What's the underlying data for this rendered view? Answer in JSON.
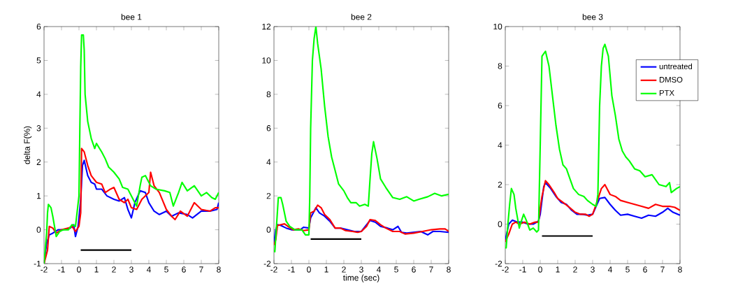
{
  "chart_data": [
    {
      "type": "line",
      "title": "bee 1",
      "ylabel": "delta F(%)",
      "xlim": [
        -2,
        8
      ],
      "ylim": [
        -1,
        6
      ],
      "xticks": [
        -2,
        -1,
        0,
        1,
        2,
        3,
        4,
        5,
        6,
        7,
        8
      ],
      "yticks": [
        -1,
        0,
        1,
        2,
        3,
        4,
        5,
        6
      ],
      "legend": false,
      "series": [
        {
          "color": "#0000ff",
          "x": [
            -2,
            -1.85,
            -1.7,
            -1.5,
            -1.2,
            -0.9,
            -0.5,
            -0.3,
            -0.2,
            -0.05,
            0.1,
            0.2,
            0.3,
            0.5,
            0.7,
            0.9,
            1.0,
            1.3,
            1.6,
            2.0,
            2.3,
            2.6,
            2.8,
            3.0,
            3.2,
            3.5,
            3.8,
            4.0,
            4.3,
            4.6,
            5.0,
            5.3,
            5.7,
            6.2,
            6.5,
            7.0,
            7.5,
            7.9,
            8.0
          ],
          "values": [
            -1.0,
            -0.4,
            -0.15,
            -0.1,
            0.0,
            0.0,
            0.05,
            0.15,
            -0.2,
            0.1,
            0.9,
            1.9,
            2.05,
            1.6,
            1.4,
            1.35,
            1.2,
            1.2,
            1.0,
            0.9,
            0.85,
            0.95,
            0.6,
            0.35,
            0.8,
            1.15,
            1.1,
            0.8,
            0.55,
            0.45,
            0.55,
            0.4,
            0.5,
            0.45,
            0.35,
            0.55,
            0.55,
            0.6,
            0.8
          ]
        },
        {
          "color": "#ff0000",
          "x": [
            -2,
            -1.8,
            -1.7,
            -1.5,
            -1.3,
            -1.0,
            -0.6,
            -0.4,
            -0.2,
            0.0,
            0.1,
            0.15,
            0.3,
            0.5,
            0.7,
            1.0,
            1.3,
            1.5,
            1.8,
            2.0,
            2.3,
            2.6,
            2.8,
            3.0,
            3.3,
            3.6,
            3.9,
            4.0,
            4.1,
            4.3,
            4.6,
            5.0,
            5.3,
            5.5,
            5.8,
            6.2,
            6.6,
            7.0,
            7.5,
            7.8,
            8.0
          ],
          "values": [
            -1.0,
            -0.6,
            0.1,
            0.05,
            -0.1,
            0.0,
            0.05,
            0.1,
            -0.05,
            0.1,
            0.5,
            2.4,
            2.3,
            1.9,
            1.6,
            1.4,
            1.35,
            1.1,
            1.2,
            1.25,
            0.9,
            0.8,
            0.9,
            0.65,
            0.6,
            0.9,
            1.05,
            1.1,
            1.7,
            1.3,
            1.1,
            0.6,
            0.4,
            0.3,
            0.55,
            0.4,
            0.8,
            0.6,
            0.55,
            0.65,
            0.65
          ]
        },
        {
          "color": "#00ff00",
          "x": [
            -2.0,
            -1.85,
            -1.8,
            -1.75,
            -1.6,
            -1.5,
            -1.4,
            -1.3,
            -1.1,
            -0.9,
            -0.6,
            -0.4,
            -0.2,
            0.0,
            0.05,
            0.1,
            0.15,
            0.25,
            0.3,
            0.35,
            0.5,
            0.7,
            0.9,
            1.0,
            1.3,
            1.5,
            1.7,
            2.0,
            2.3,
            2.5,
            2.8,
            3.0,
            3.3,
            3.5,
            3.6,
            3.8,
            4.1,
            4.4,
            4.9,
            5.2,
            5.4,
            5.7,
            5.9,
            6.2,
            6.6,
            7.0,
            7.3,
            7.6,
            7.8,
            8.0
          ],
          "values": [
            -1.0,
            -0.1,
            0.5,
            0.75,
            0.65,
            0.4,
            0.1,
            -0.2,
            -0.05,
            0.0,
            0.0,
            0.15,
            0.1,
            1.0,
            3.0,
            4.8,
            5.75,
            5.75,
            5.3,
            4.0,
            3.2,
            2.7,
            2.4,
            2.55,
            2.3,
            2.1,
            1.85,
            1.7,
            1.5,
            1.25,
            1.2,
            1.0,
            0.7,
            1.3,
            1.55,
            1.6,
            1.3,
            1.2,
            1.15,
            1.1,
            0.7,
            1.1,
            1.4,
            1.15,
            1.3,
            1.0,
            1.1,
            0.95,
            0.9,
            1.1
          ]
        },
        {
          "color": "#000000",
          "x": [
            0.1,
            3
          ],
          "values": [
            -0.6,
            -0.6
          ]
        }
      ]
    },
    {
      "type": "line",
      "title": "bee 2",
      "xlabel": "time (sec)",
      "xlim": [
        -2,
        8
      ],
      "ylim": [
        -2,
        12
      ],
      "xticks": [
        -2,
        -1,
        0,
        1,
        2,
        3,
        4,
        5,
        6,
        7,
        8
      ],
      "yticks": [
        -2,
        0,
        2,
        4,
        6,
        8,
        10,
        12
      ],
      "legend": false,
      "series": [
        {
          "color": "#0000ff",
          "x": [
            -2,
            -1.9,
            -1.8,
            -1.6,
            -1.3,
            -1.0,
            -0.5,
            -0.3,
            0.0,
            0.1,
            0.3,
            0.4,
            0.6,
            0.9,
            1.2,
            1.5,
            1.8,
            2.2,
            2.6,
            3.0,
            3.3,
            3.5,
            3.8,
            4.1,
            4.5,
            4.8,
            5.1,
            5.3,
            5.6,
            6.0,
            6.4,
            6.8,
            7.1,
            7.5,
            8.0
          ],
          "values": [
            -0.8,
            0.0,
            0.3,
            0.25,
            0.1,
            0.0,
            0.0,
            0.15,
            0.1,
            0.7,
            1.1,
            1.3,
            1.0,
            0.8,
            0.5,
            0.1,
            0.1,
            0.0,
            -0.1,
            -0.1,
            0.3,
            0.55,
            0.45,
            0.2,
            0.1,
            0.0,
            0.2,
            -0.15,
            -0.2,
            -0.15,
            -0.1,
            -0.3,
            -0.1,
            -0.1,
            -0.15
          ]
        },
        {
          "color": "#ff0000",
          "x": [
            -2,
            -1.9,
            -1.8,
            -1.6,
            -1.4,
            -1.2,
            -0.9,
            -0.6,
            -0.3,
            0.0,
            0.1,
            0.3,
            0.5,
            0.7,
            0.9,
            1.2,
            1.5,
            1.8,
            2.1,
            2.5,
            2.8,
            3.0,
            3.3,
            3.5,
            3.8,
            4.1,
            4.4,
            4.8,
            5.2,
            5.5,
            6.0,
            6.5,
            7.0,
            7.5,
            7.8,
            8.0
          ],
          "values": [
            -0.9,
            -0.6,
            0.25,
            0.3,
            0.35,
            0.2,
            0.0,
            0.05,
            -0.05,
            0.0,
            1.0,
            1.1,
            1.45,
            1.3,
            0.9,
            0.6,
            0.1,
            0.1,
            -0.05,
            -0.1,
            -0.15,
            -0.1,
            0.2,
            0.6,
            0.55,
            0.3,
            0.1,
            -0.1,
            -0.1,
            -0.25,
            -0.2,
            -0.1,
            0.0,
            0.05,
            0.05,
            -0.1
          ]
        },
        {
          "color": "#00ff00",
          "x": [
            -2,
            -1.95,
            -1.85,
            -1.75,
            -1.6,
            -1.5,
            -1.3,
            -1.1,
            -0.8,
            -0.4,
            -0.2,
            0.0,
            0.05,
            0.1,
            0.2,
            0.3,
            0.4,
            0.5,
            0.7,
            0.9,
            1.1,
            1.3,
            1.5,
            1.7,
            2.0,
            2.2,
            2.4,
            2.7,
            2.9,
            3.2,
            3.4,
            3.5,
            3.6,
            3.7,
            3.9,
            4.1,
            4.4,
            4.6,
            4.8,
            5.2,
            5.6,
            6.0,
            6.3,
            6.8,
            7.2,
            7.6,
            8.0
          ],
          "values": [
            -1.2,
            -1.3,
            0.3,
            1.9,
            1.9,
            1.5,
            0.5,
            0.2,
            0.0,
            0.0,
            -0.3,
            -0.3,
            2.0,
            6.0,
            10.0,
            11.3,
            12.0,
            11.0,
            9.5,
            7.3,
            5.5,
            4.3,
            3.5,
            2.7,
            2.3,
            1.9,
            1.6,
            1.6,
            1.4,
            1.5,
            1.4,
            3.0,
            4.5,
            5.2,
            4.2,
            3.0,
            2.5,
            2.2,
            1.9,
            1.8,
            1.95,
            1.7,
            1.8,
            1.95,
            2.15,
            2.0,
            2.1
          ]
        },
        {
          "color": "#000000",
          "x": [
            0.1,
            3
          ],
          "values": [
            -0.55,
            -0.55
          ]
        }
      ]
    },
    {
      "type": "line",
      "title": "bee 3",
      "xlim": [
        -2,
        8
      ],
      "ylim": [
        -2,
        10
      ],
      "xticks": [
        -2,
        -1,
        0,
        1,
        2,
        3,
        4,
        5,
        6,
        7,
        8
      ],
      "yticks": [
        -2,
        0,
        2,
        4,
        6,
        8,
        10
      ],
      "legend": "top right",
      "series": [
        {
          "name": "untreated",
          "color": "#0000ff",
          "x": [
            -2,
            -1.8,
            -1.6,
            -1.3,
            -1.0,
            -0.7,
            -0.4,
            -0.1,
            0.0,
            0.2,
            0.3,
            0.6,
            0.9,
            1.2,
            1.5,
            1.8,
            2.1,
            2.4,
            2.7,
            3.0,
            3.2,
            3.4,
            3.7,
            4.0,
            4.3,
            4.6,
            5.0,
            5.4,
            5.8,
            6.2,
            6.6,
            7.0,
            7.3,
            7.6,
            8.0
          ],
          "values": [
            -0.8,
            0.0,
            0.2,
            0.1,
            0.1,
            0.0,
            0.0,
            0.15,
            0.5,
            1.9,
            2.1,
            1.8,
            1.4,
            1.1,
            1.0,
            0.7,
            0.5,
            0.5,
            0.45,
            0.5,
            0.9,
            1.3,
            1.35,
            1.0,
            0.7,
            0.45,
            0.5,
            0.4,
            0.3,
            0.45,
            0.4,
            0.6,
            0.8,
            0.6,
            0.45
          ]
        },
        {
          "name": "DMSO",
          "color": "#ff0000",
          "x": [
            -2,
            -1.8,
            -1.6,
            -1.4,
            -1.2,
            -0.9,
            -0.6,
            -0.3,
            -0.1,
            0.0,
            0.1,
            0.3,
            0.5,
            0.8,
            1.0,
            1.3,
            1.6,
            2.0,
            2.3,
            2.6,
            2.8,
            3.0,
            3.2,
            3.5,
            3.7,
            4.0,
            4.3,
            4.6,
            5.0,
            5.4,
            5.8,
            6.2,
            6.6,
            7.0,
            7.4,
            7.7,
            8.0
          ],
          "values": [
            -0.9,
            -0.5,
            0.0,
            0.1,
            0.0,
            0.1,
            0.0,
            0.1,
            0.1,
            0.8,
            1.4,
            2.2,
            2.0,
            1.6,
            1.3,
            1.1,
            0.9,
            0.6,
            0.5,
            0.5,
            0.4,
            0.5,
            1.0,
            1.8,
            2.0,
            1.5,
            1.4,
            1.2,
            1.1,
            1.0,
            0.9,
            0.8,
            1.0,
            0.9,
            0.9,
            0.85,
            0.7
          ]
        },
        {
          "name": "PTX",
          "color": "#00ff00",
          "x": [
            -2,
            -1.95,
            -1.85,
            -1.75,
            -1.65,
            -1.5,
            -1.4,
            -1.3,
            -1.2,
            -1.1,
            -0.95,
            -0.8,
            -0.6,
            -0.4,
            -0.2,
            -0.1,
            0.0,
            0.1,
            0.3,
            0.5,
            0.7,
            0.9,
            1.1,
            1.3,
            1.5,
            1.7,
            1.9,
            2.2,
            2.5,
            2.7,
            3.0,
            3.2,
            3.3,
            3.4,
            3.5,
            3.6,
            3.7,
            3.9,
            4.1,
            4.3,
            4.5,
            4.7,
            4.9,
            5.1,
            5.4,
            5.7,
            6.0,
            6.4,
            6.8,
            7.2,
            7.4,
            7.5,
            7.8,
            8.0
          ],
          "values": [
            -1.2,
            -1.2,
            0.0,
            1.0,
            1.8,
            1.5,
            0.8,
            0.3,
            -0.2,
            0.1,
            0.5,
            0.2,
            -0.3,
            -0.2,
            -0.4,
            -0.3,
            4.0,
            8.5,
            8.75,
            8.0,
            6.5,
            5.0,
            3.8,
            3.0,
            2.8,
            2.3,
            1.8,
            1.5,
            1.4,
            1.2,
            1.0,
            0.9,
            1.5,
            6.0,
            8.0,
            8.9,
            9.1,
            8.5,
            6.5,
            5.5,
            4.3,
            3.7,
            3.4,
            3.2,
            2.8,
            2.7,
            2.4,
            2.5,
            2.0,
            1.9,
            2.1,
            1.6,
            1.8,
            1.9
          ]
        },
        {
          "color": "#000000",
          "x": [
            0.1,
            3
          ],
          "values": [
            -0.6,
            -0.6
          ]
        }
      ]
    }
  ]
}
